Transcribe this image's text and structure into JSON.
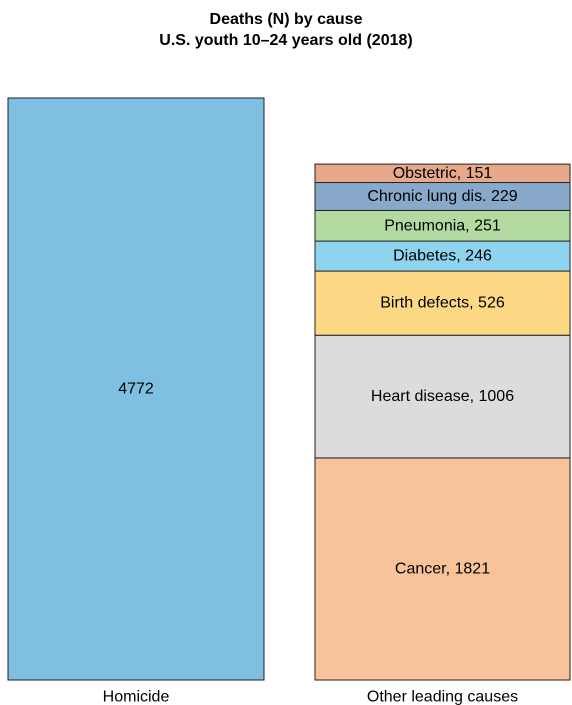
{
  "chart_data": {
    "type": "bar",
    "title": "Deaths (N) by cause",
    "subtitle": "U.S. youth 10–24 years old (2018)",
    "categories": [
      "Homicide",
      "Other leading causes"
    ],
    "stacks": [
      {
        "category": "Homicide",
        "segments": [
          {
            "name": "",
            "value": 4772,
            "label": "4772",
            "color": "#7fbfe2"
          }
        ]
      },
      {
        "category": "Other leading causes",
        "segments": [
          {
            "name": "Cancer",
            "value": 1821,
            "label": "Cancer, 1821",
            "color": "#f8c39a"
          },
          {
            "name": "Heart disease",
            "value": 1006,
            "label": "Heart disease, 1006",
            "color": "#dcdcdc"
          },
          {
            "name": "Birth defects",
            "value": 526,
            "label": "Birth defects, 526",
            "color": "#fdd986"
          },
          {
            "name": "Diabetes",
            "value": 246,
            "label": "Diabetes, 246",
            "color": "#8fd4ef"
          },
          {
            "name": "Pneumonia",
            "value": 251,
            "label": "Pneumonia, 251",
            "color": "#b3daa0"
          },
          {
            "name": "Chronic lung dis.",
            "value": 229,
            "label": "Chronic lung dis. 229",
            "color": "#88a9c9"
          },
          {
            "name": "Obstetric",
            "value": 151,
            "label": "Obstetric, 151",
            "color": "#e8a88a"
          }
        ]
      }
    ],
    "ylim": [
      0,
      4772
    ],
    "axes_visible": false,
    "grid": false,
    "legend": "none"
  }
}
